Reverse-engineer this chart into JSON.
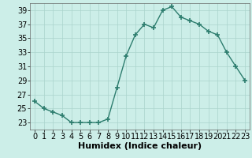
{
  "title": "",
  "xlabel": "Humidex (Indice chaleur)",
  "ylabel": "",
  "x": [
    0,
    1,
    2,
    3,
    4,
    5,
    6,
    7,
    8,
    9,
    10,
    11,
    12,
    13,
    14,
    15,
    16,
    17,
    18,
    19,
    20,
    21,
    22,
    23
  ],
  "y": [
    26,
    25,
    24.5,
    24,
    23,
    23,
    23,
    23,
    23.5,
    28,
    32.5,
    35.5,
    37,
    36.5,
    39,
    39.5,
    38,
    37.5,
    37,
    36,
    35.5,
    33,
    31,
    29
  ],
  "xlim": [
    -0.5,
    23.5
  ],
  "ylim": [
    22.0,
    40.0
  ],
  "yticks": [
    23,
    25,
    27,
    29,
    31,
    33,
    35,
    37,
    39
  ],
  "xticks": [
    0,
    1,
    2,
    3,
    4,
    5,
    6,
    7,
    8,
    9,
    10,
    11,
    12,
    13,
    14,
    15,
    16,
    17,
    18,
    19,
    20,
    21,
    22,
    23
  ],
  "line_color": "#2d7d6e",
  "marker": "+",
  "marker_size": 4,
  "marker_lw": 1.2,
  "line_width": 1.0,
  "bg_color": "#cceee8",
  "grid_color": "#aad4cc",
  "xlabel_fontsize": 8,
  "tick_fontsize": 7
}
